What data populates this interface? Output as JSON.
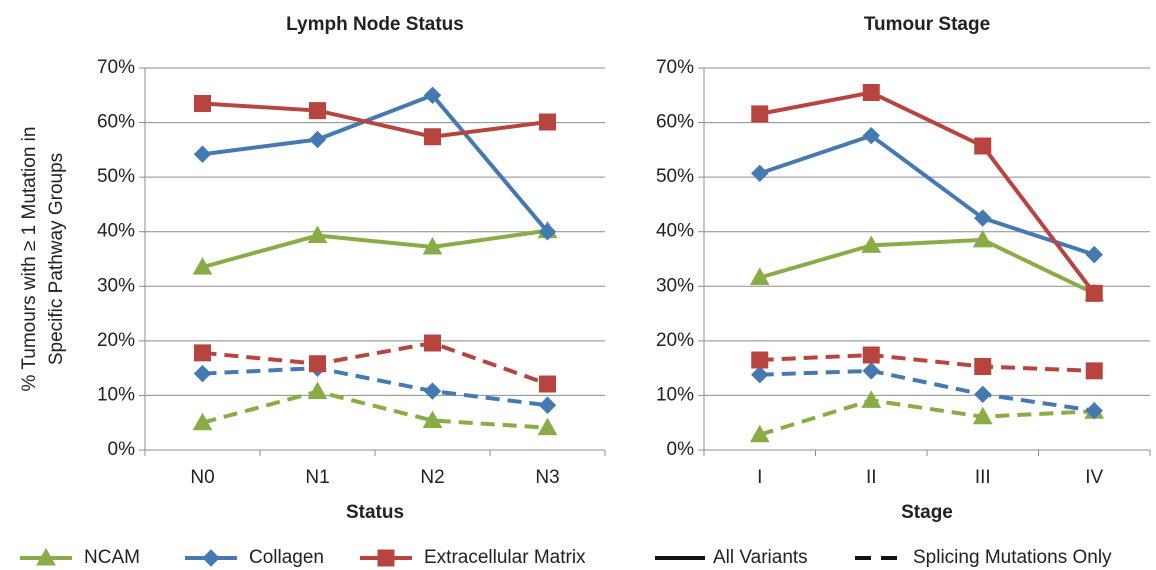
{
  "chart_data": [
    {
      "type": "line",
      "title": "Lymph Node Status",
      "x_label": "Status",
      "y_label": [
        "% Tumours with ≥ 1 Mutation in",
        "Specific Pathway Groups"
      ],
      "categories": [
        "N0",
        "N1",
        "N2",
        "N3"
      ],
      "ylim": [
        0,
        70
      ],
      "yticks": [
        {
          "value": 0,
          "label": "0%"
        },
        {
          "value": 10,
          "label": "10%"
        },
        {
          "value": 20,
          "label": "20%"
        },
        {
          "value": 30,
          "label": "30%"
        },
        {
          "value": 40,
          "label": "40%"
        },
        {
          "value": 50,
          "label": "50%"
        },
        {
          "value": 60,
          "label": "60%"
        },
        {
          "value": 70,
          "label": "70%"
        }
      ],
      "grid": true,
      "series": [
        {
          "group": "NCAM",
          "style": "All Variants",
          "values": [
            33.5,
            39.3,
            37.2,
            40.2
          ]
        },
        {
          "group": "Collagen",
          "style": "All Variants",
          "values": [
            54.2,
            56.9,
            65,
            40
          ]
        },
        {
          "group": "Extracellular Matrix",
          "style": "All Variants",
          "values": [
            63.5,
            62.2,
            57.4,
            60.1
          ]
        },
        {
          "group": "NCAM",
          "style": "Splicing Mutations Only",
          "values": [
            5,
            10.7,
            5.4,
            4.1
          ]
        },
        {
          "group": "Collagen",
          "style": "Splicing Mutations Only",
          "values": [
            14,
            15,
            10.8,
            8.2
          ]
        },
        {
          "group": "Extracellular Matrix",
          "style": "Splicing Mutations Only",
          "values": [
            17.8,
            15.8,
            19.6,
            12.1
          ]
        }
      ]
    },
    {
      "type": "line",
      "title": "Tumour Stage",
      "x_label": "Stage",
      "categories": [
        "I",
        "II",
        "III",
        "IV"
      ],
      "ylim": [
        0,
        70
      ],
      "yticks": [
        {
          "value": 0,
          "label": "0%"
        },
        {
          "value": 10,
          "label": "10%"
        },
        {
          "value": 20,
          "label": "20%"
        },
        {
          "value": 30,
          "label": "30%"
        },
        {
          "value": 40,
          "label": "40%"
        },
        {
          "value": 50,
          "label": "50%"
        },
        {
          "value": 60,
          "label": "60%"
        },
        {
          "value": 70,
          "label": "70%"
        }
      ],
      "grid": true,
      "series": [
        {
          "group": "NCAM",
          "style": "All Variants",
          "values": [
            31.6,
            37.5,
            38.5,
            28.7
          ]
        },
        {
          "group": "Collagen",
          "style": "All Variants",
          "values": [
            50.7,
            57.6,
            42.5,
            35.8
          ]
        },
        {
          "group": "Extracellular Matrix",
          "style": "All Variants",
          "values": [
            61.6,
            65.5,
            55.7,
            28.7
          ]
        },
        {
          "group": "NCAM",
          "style": "Splicing Mutations Only",
          "values": [
            2.8,
            9.1,
            6.1,
            7.1
          ]
        },
        {
          "group": "Collagen",
          "style": "Splicing Mutations Only",
          "values": [
            13.8,
            14.5,
            10.2,
            7.2
          ]
        },
        {
          "group": "Extracellular Matrix",
          "style": "Splicing Mutations Only",
          "values": [
            16.5,
            17.4,
            15.3,
            14.5
          ]
        }
      ]
    }
  ],
  "legend": {
    "groups": [
      {
        "name": "NCAM",
        "color": "#8aac46",
        "marker": "triangle"
      },
      {
        "name": "Collagen",
        "color": "#4479b2",
        "marker": "diamond"
      },
      {
        "name": "Extracellular Matrix",
        "color": "#b8443f",
        "marker": "square"
      }
    ],
    "styles": [
      {
        "name": "All Variants",
        "dash": "solid"
      },
      {
        "name": "Splicing Mutations Only",
        "dash": "dashed"
      }
    ]
  }
}
